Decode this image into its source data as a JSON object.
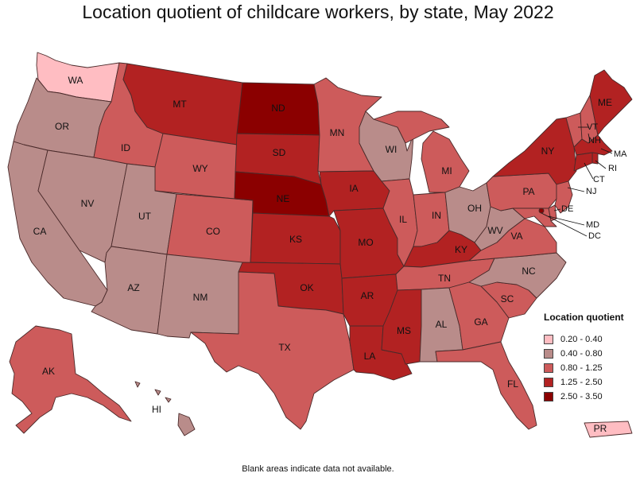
{
  "title": "Location quotient of childcare workers, by state, May 2022",
  "footnote": "Blank areas indicate data not available.",
  "legend": {
    "title": "Location quotient",
    "items": [
      {
        "label": "0.20 - 0.40",
        "color": "#ffbdc2"
      },
      {
        "label": "0.40 - 0.80",
        "color": "#b98c8a"
      },
      {
        "label": "0.80 - 1.25",
        "color": "#cd5b5b"
      },
      {
        "label": "1.25 - 2.50",
        "color": "#b22222"
      },
      {
        "label": "2.50 - 3.50",
        "color": "#8b0000"
      }
    ]
  },
  "states": {
    "WA": {
      "label": "WA",
      "class": 0
    },
    "OR": {
      "label": "OR",
      "class": 1
    },
    "CA": {
      "label": "CA",
      "class": 1
    },
    "NV": {
      "label": "NV",
      "class": 1
    },
    "ID": {
      "label": "ID",
      "class": 2
    },
    "MT": {
      "label": "MT",
      "class": 3
    },
    "WY": {
      "label": "WY",
      "class": 2
    },
    "UT": {
      "label": "UT",
      "class": 1
    },
    "AZ": {
      "label": "AZ",
      "class": 1
    },
    "CO": {
      "label": "CO",
      "class": 2
    },
    "NM": {
      "label": "NM",
      "class": 1
    },
    "ND": {
      "label": "ND",
      "class": 4
    },
    "SD": {
      "label": "SD",
      "class": 3
    },
    "NE": {
      "label": "NE",
      "class": 4
    },
    "KS": {
      "label": "KS",
      "class": 3
    },
    "OK": {
      "label": "OK",
      "class": 3
    },
    "TX": {
      "label": "TX",
      "class": 2
    },
    "MN": {
      "label": "MN",
      "class": 2
    },
    "IA": {
      "label": "IA",
      "class": 3
    },
    "MO": {
      "label": "MO",
      "class": 3
    },
    "AR": {
      "label": "AR",
      "class": 3
    },
    "LA": {
      "label": "LA",
      "class": 3
    },
    "WI": {
      "label": "WI",
      "class": 1
    },
    "IL": {
      "label": "IL",
      "class": 2
    },
    "MI": {
      "label": "MI",
      "class": 2
    },
    "IN": {
      "label": "IN",
      "class": 2
    },
    "OH": {
      "label": "OH",
      "class": 1
    },
    "KY": {
      "label": "KY",
      "class": 3
    },
    "TN": {
      "label": "TN",
      "class": 2
    },
    "MS": {
      "label": "MS",
      "class": 3
    },
    "AL": {
      "label": "AL",
      "class": 1
    },
    "GA": {
      "label": "GA",
      "class": 2
    },
    "FL": {
      "label": "FL",
      "class": 2
    },
    "SC": {
      "label": "SC",
      "class": 2
    },
    "NC": {
      "label": "NC",
      "class": 1
    },
    "VA": {
      "label": "VA",
      "class": 2
    },
    "WV": {
      "label": "WV",
      "class": 1
    },
    "PA": {
      "label": "PA",
      "class": 2
    },
    "NY": {
      "label": "NY",
      "class": 3
    },
    "ME": {
      "label": "ME",
      "class": 3
    },
    "VT": {
      "label": "VT",
      "class": 2
    },
    "NH": {
      "label": "NH",
      "class": 2
    },
    "MA": {
      "label": "MA",
      "class": 3
    },
    "RI": {
      "label": "RI",
      "class": 3
    },
    "CT": {
      "label": "CT",
      "class": 3
    },
    "NJ": {
      "label": "NJ",
      "class": 2
    },
    "DE": {
      "label": "DE",
      "class": 2
    },
    "MD": {
      "label": "MD",
      "class": 2
    },
    "DC": {
      "label": "DC",
      "class": 4
    },
    "AK": {
      "label": "AK",
      "class": 2
    },
    "HI": {
      "label": "HI",
      "class": 1
    },
    "PR": {
      "label": "PR",
      "class": 0
    }
  }
}
